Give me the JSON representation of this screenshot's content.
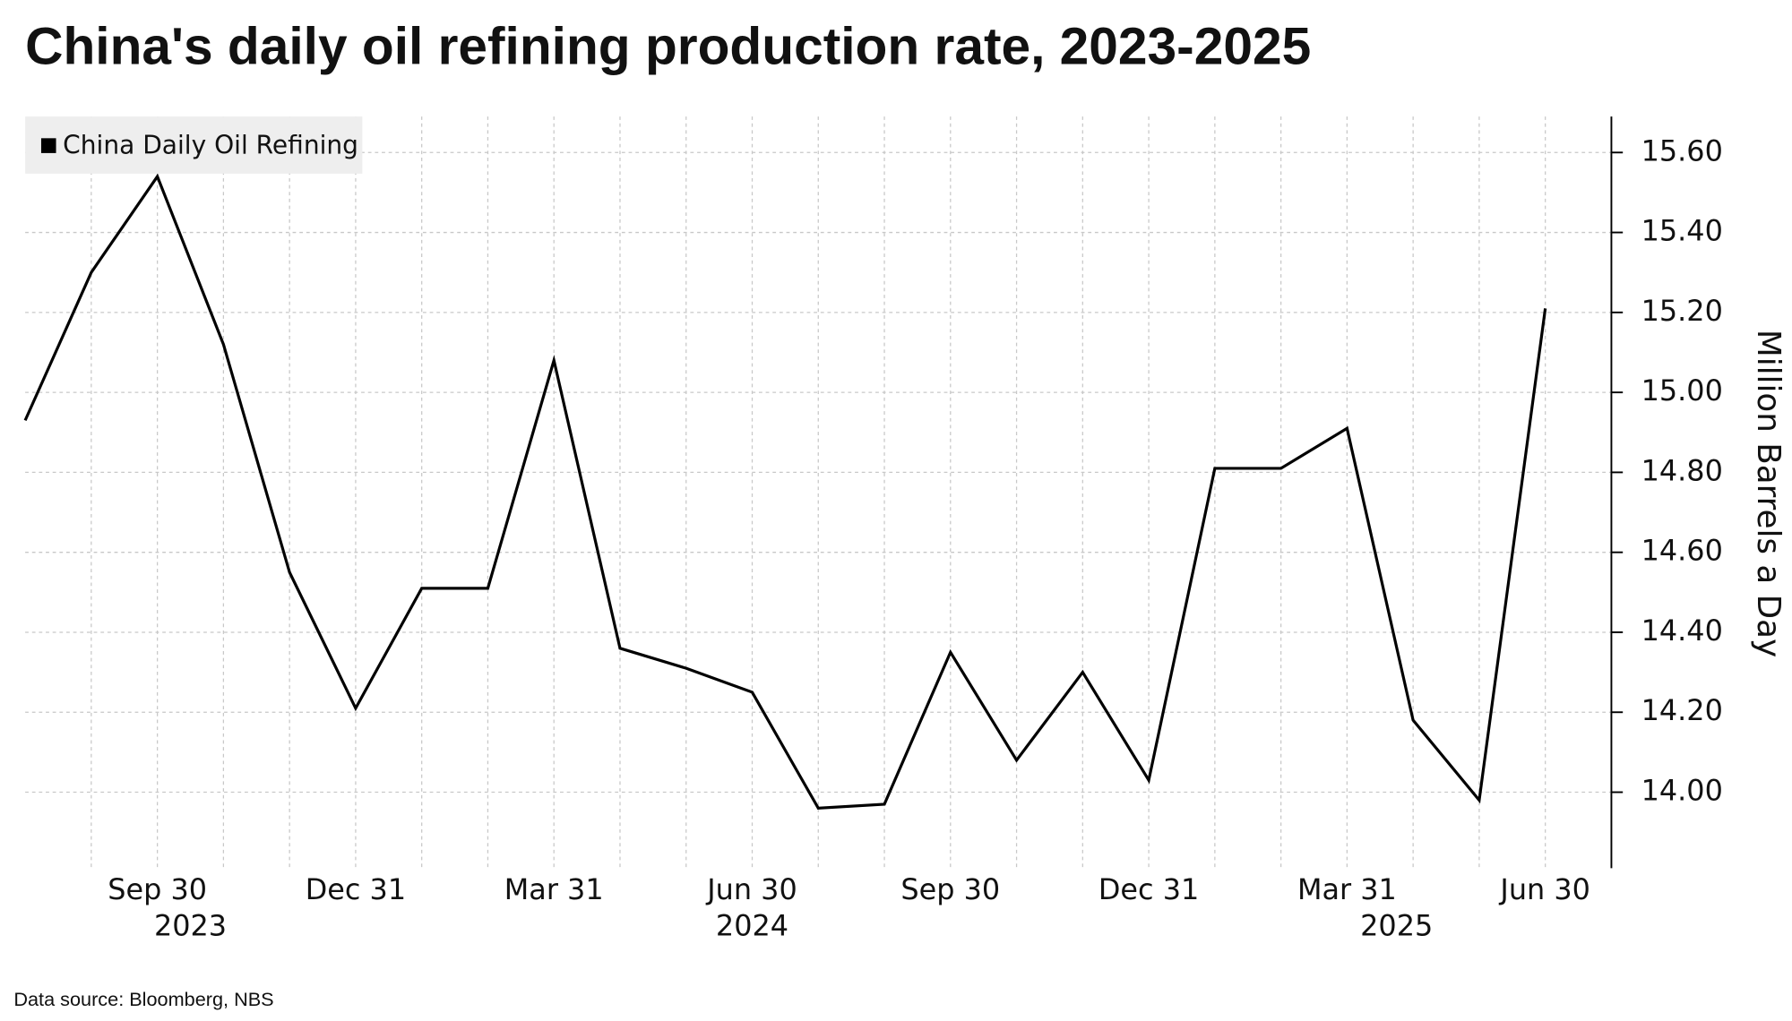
{
  "chart_data": {
    "type": "line",
    "title": "China's daily oil refining production rate, 2023-2025",
    "y_axis_label": "Million Barrels a Day",
    "source": "Data source: Bloomberg, NBS",
    "categories": [
      null,
      null,
      "Sep 30",
      null,
      null,
      "Dec 31",
      null,
      null,
      "Mar 31",
      null,
      null,
      "Jun 30",
      null,
      null,
      "Sep 30",
      null,
      null,
      "Dec 31",
      null,
      null,
      "Mar 31",
      null,
      null,
      "Jun 30"
    ],
    "year_labels": [
      "2023",
      "2024",
      "2025"
    ],
    "series": [
      {
        "name": "China Daily Oil Refining",
        "color": "#000000",
        "values": [
          14.93,
          15.3,
          15.54,
          15.12,
          14.55,
          14.21,
          14.51,
          14.51,
          15.08,
          14.36,
          14.31,
          14.25,
          13.96,
          13.97,
          14.35,
          14.08,
          14.3,
          14.03,
          14.81,
          14.81,
          14.91,
          14.18,
          13.98,
          15.21
        ]
      }
    ],
    "ylim": [
      13.81,
      15.69
    ],
    "yticks": [
      {
        "value": 14.0,
        "label": "14.00"
      },
      {
        "value": 14.2,
        "label": "14.20"
      },
      {
        "value": 14.4,
        "label": "14.40"
      },
      {
        "value": 14.6,
        "label": "14.60"
      },
      {
        "value": 14.8,
        "label": "14.80"
      },
      {
        "value": 15.0,
        "label": "15.00"
      },
      {
        "value": 15.2,
        "label": "15.20"
      },
      {
        "value": 15.4,
        "label": "15.40"
      },
      {
        "value": 15.6,
        "label": "15.60"
      }
    ],
    "grid": true,
    "legend": "top-left"
  }
}
